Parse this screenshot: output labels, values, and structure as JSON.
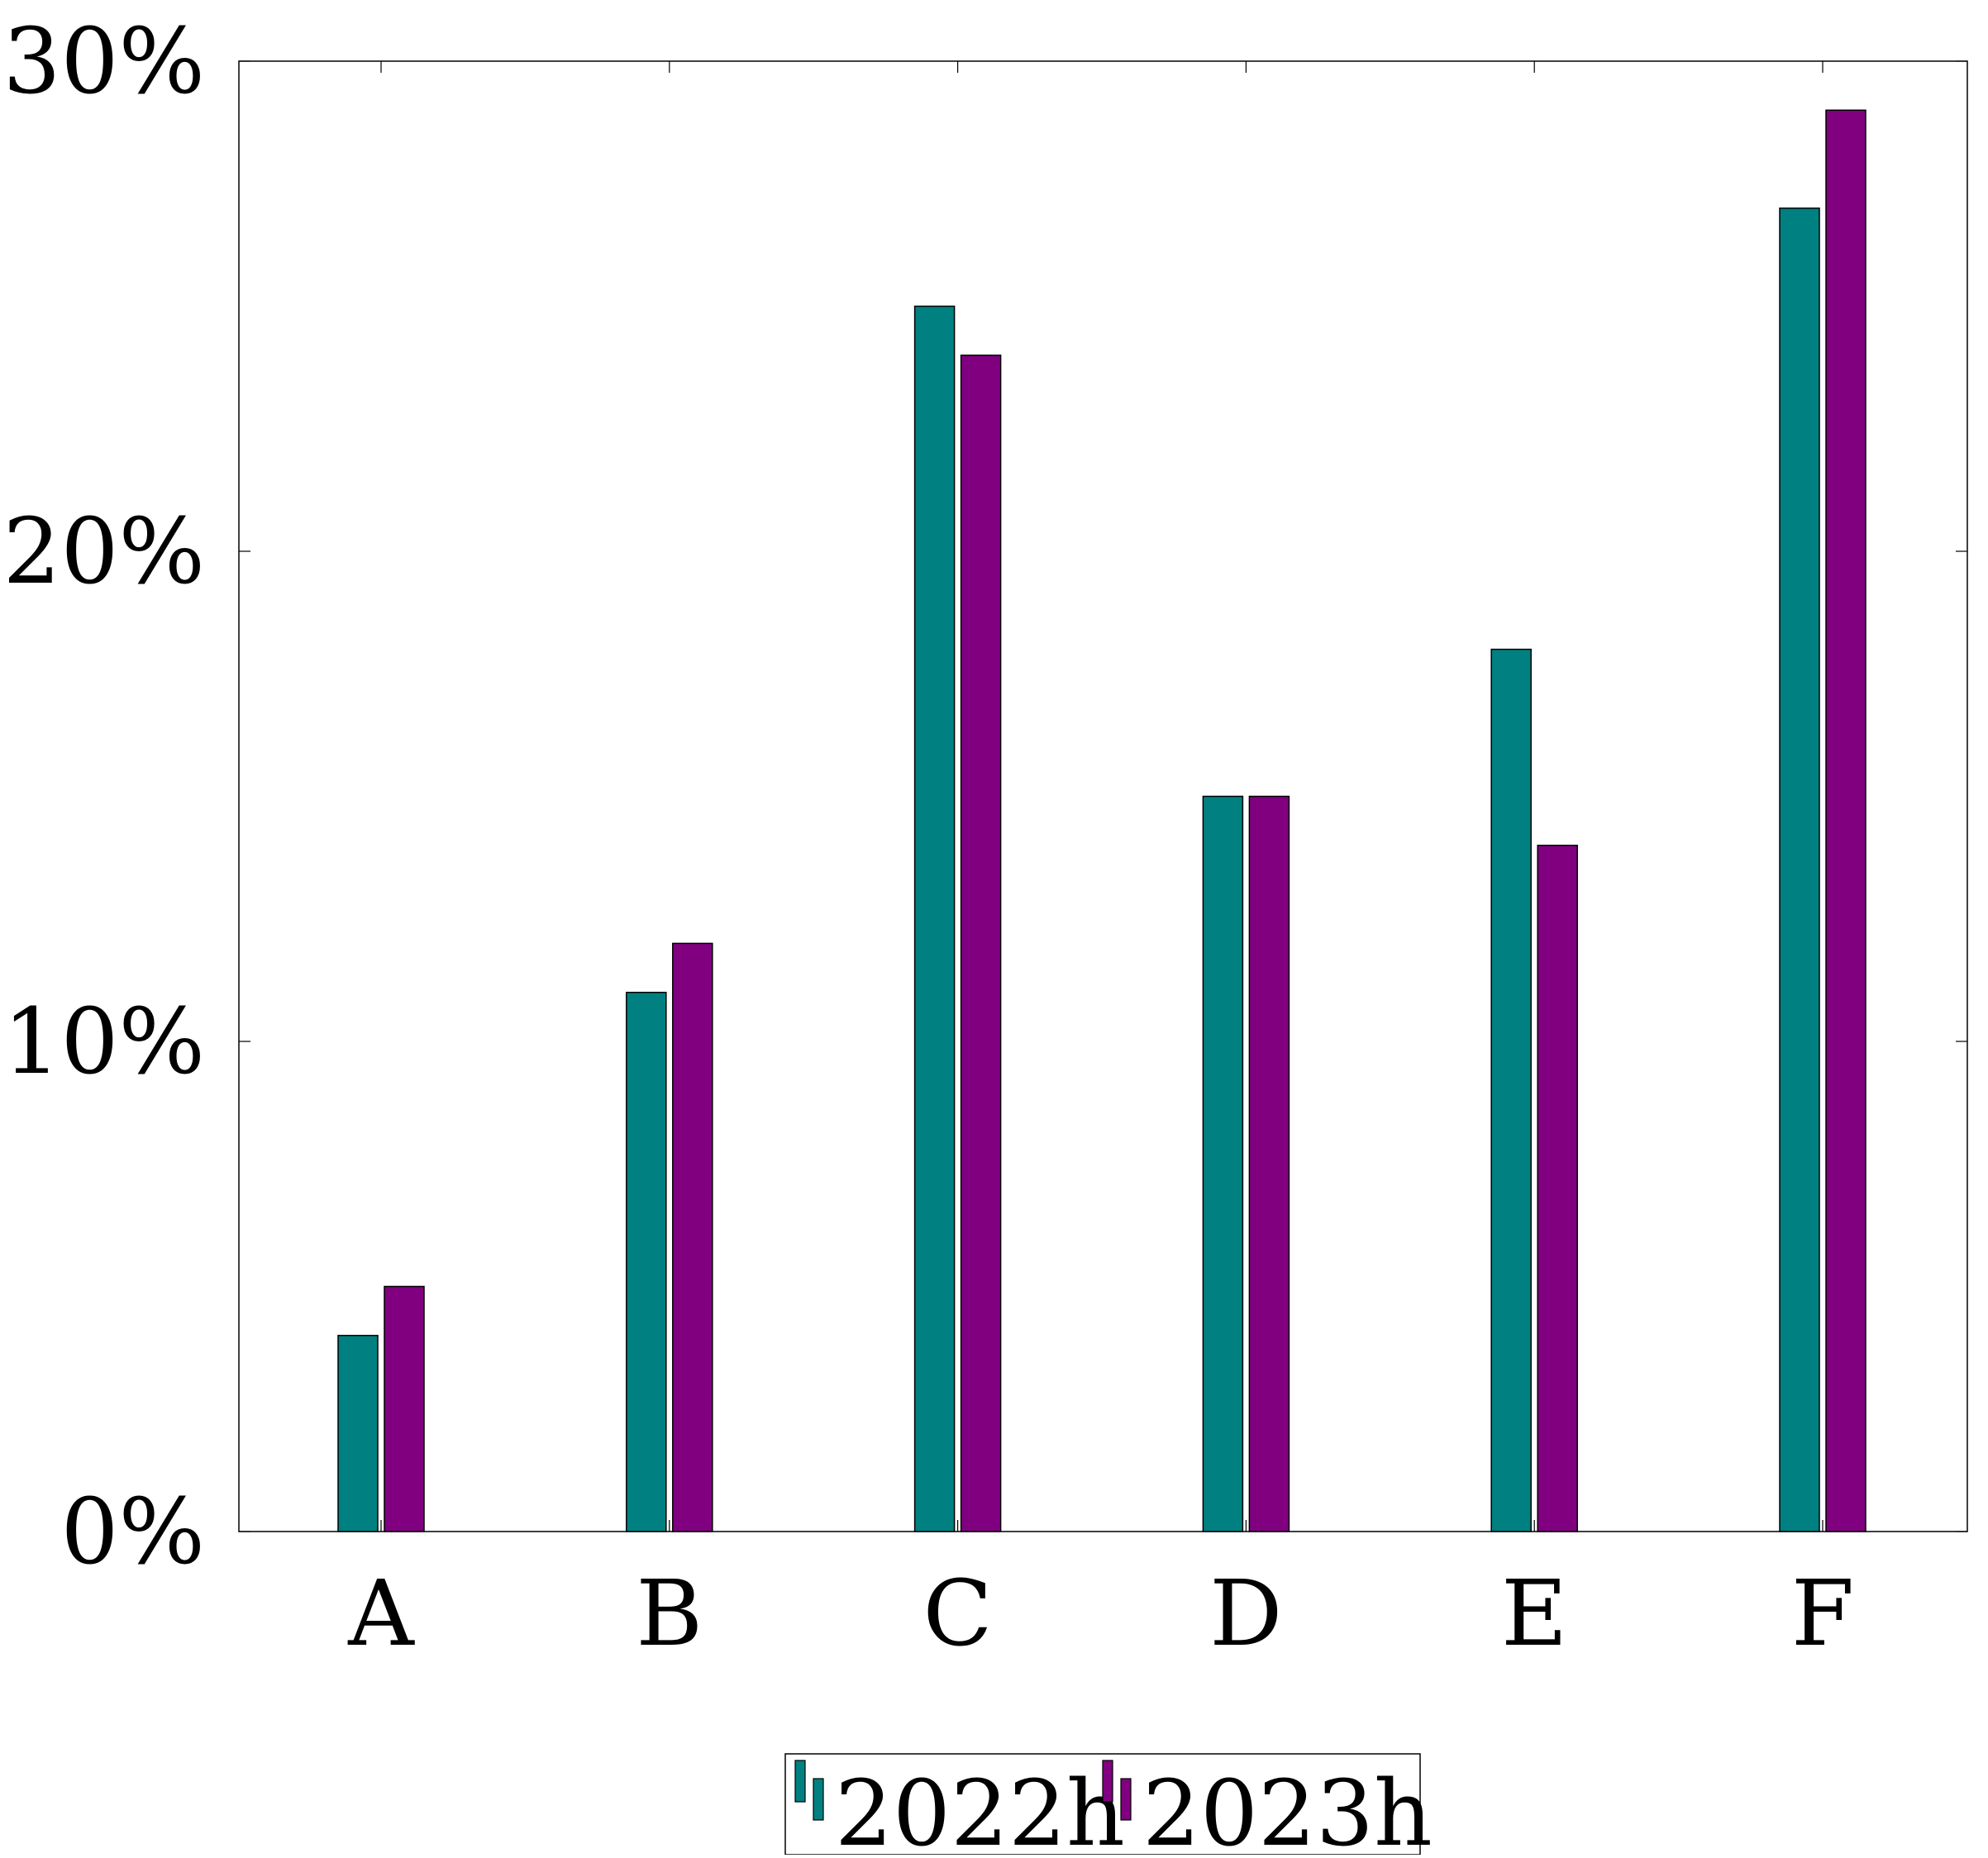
{
  "chart_data": {
    "type": "bar",
    "title": "",
    "xlabel": "",
    "ylabel": "",
    "categories": [
      "A",
      "B",
      "C",
      "D",
      "E",
      "F"
    ],
    "series": [
      {
        "name": "2022h",
        "values": [
          4,
          11,
          25,
          15,
          18,
          27
        ],
        "color": "#008080"
      },
      {
        "name": "2023h",
        "values": [
          5,
          12,
          24,
          15,
          14,
          29
        ],
        "color": "#800080"
      }
    ],
    "ylim": [
      0,
      30
    ],
    "yticks": [
      0,
      10,
      20,
      30
    ],
    "ytick_labels": [
      "0%",
      "10%",
      "20%",
      "30%"
    ],
    "y_unit": "%",
    "grid": false,
    "legend_position": "bottom-center"
  }
}
